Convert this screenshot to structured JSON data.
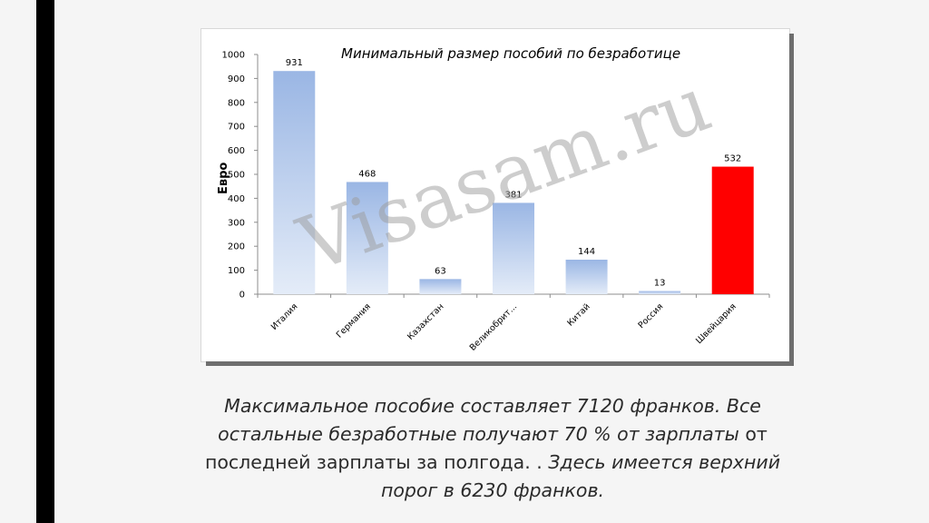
{
  "chart_data": {
    "type": "bar",
    "title": "Минимальный размер пособий по безработице",
    "ylabel": "Евро",
    "ylim": [
      0,
      1000
    ],
    "yticks": [
      "0",
      "100",
      "200",
      "300",
      "400",
      "500",
      "600",
      "700",
      "800",
      "900",
      "1000"
    ],
    "categories": [
      "Италия",
      "Германия",
      "Казахстан",
      "Великобрит...",
      "Китай",
      "Россия",
      "Швейцария"
    ],
    "values": [
      931,
      468,
      63,
      381,
      144,
      13,
      532
    ],
    "data_labels": [
      "931",
      "468",
      "63",
      "381",
      "144",
      "13",
      "532"
    ],
    "bar_colors": [
      "#a4bee6",
      "#a4bee6",
      "#a4bee6",
      "#a4bee6",
      "#a4bee6",
      "#a4bee6",
      "#ff0000"
    ],
    "grid": false,
    "legend": "none",
    "watermark": "Visasam.ru"
  },
  "caption": {
    "line1_italic": "Максимальное пособие составляет 7120 франков. Все",
    "line2_italic": "остальные безработные получают 70 % от зарплаты",
    "line2_normal": " от",
    "line3_normal": "последней зарплаты за полгода. . ",
    "line3_italic": "Здесь имеется верхний",
    "line4_italic": "порог в 6230 франков."
  },
  "colors": {
    "bar_blue": "#a4bee6",
    "bar_red": "#ff0000",
    "page_background": "#f5f5f5",
    "left_bar": "#000000"
  }
}
